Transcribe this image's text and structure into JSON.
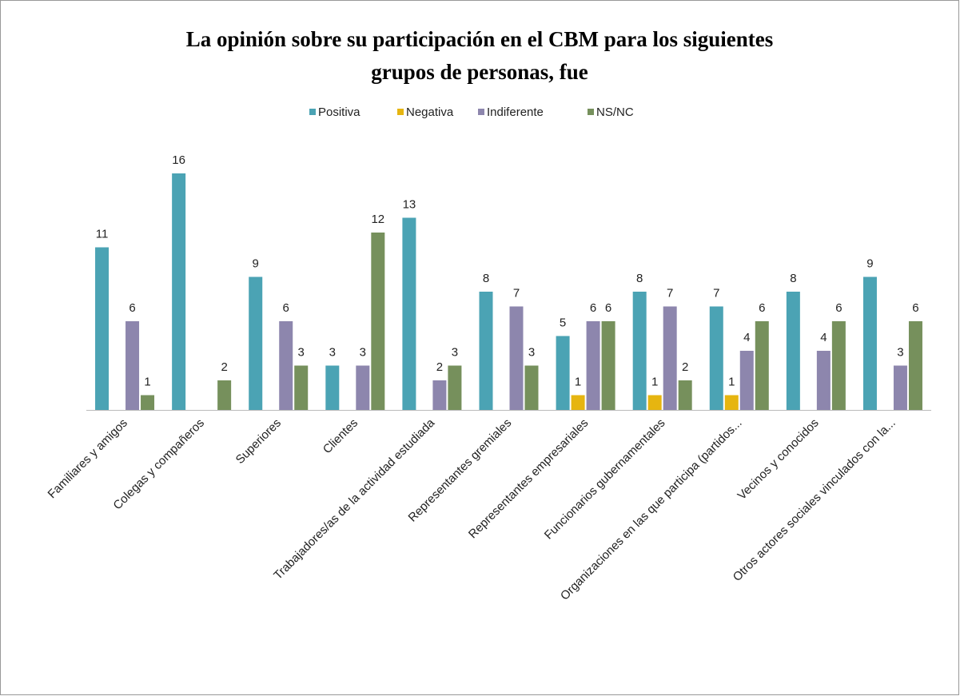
{
  "chart_data": {
    "type": "bar",
    "title": [
      "La opinión sobre su participación en el CBM para los siguientes",
      "grupos de personas, fue"
    ],
    "categories": [
      "Familiares y amigos",
      "Colegas y compañeros",
      "Superiores",
      "Clientes",
      "Trabajadores/as de la actividad estudiada",
      "Representantes gremiales",
      "Representantes empresariales",
      "Funcionarios gubernamentales",
      "Organizaciones en las que participa (partidos...",
      "Vecinos y conocidos",
      "Otros actores sociales vinculados con la..."
    ],
    "series": [
      {
        "name": "Positiva",
        "color": "#4ba3b4",
        "values": [
          11,
          16,
          9,
          3,
          13,
          8,
          5,
          8,
          7,
          8,
          9
        ]
      },
      {
        "name": "Negativa",
        "color": "#e6b510",
        "values": [
          null,
          null,
          null,
          null,
          null,
          null,
          1,
          1,
          1,
          null,
          null
        ]
      },
      {
        "name": "Indiferente",
        "color": "#8d86ad",
        "values": [
          6,
          null,
          6,
          3,
          2,
          7,
          6,
          7,
          4,
          4,
          3
        ]
      },
      {
        "name": "NS/NC",
        "color": "#76905c",
        "values": [
          1,
          2,
          3,
          12,
          3,
          3,
          6,
          2,
          6,
          6,
          6
        ]
      }
    ],
    "legend": "top"
  }
}
